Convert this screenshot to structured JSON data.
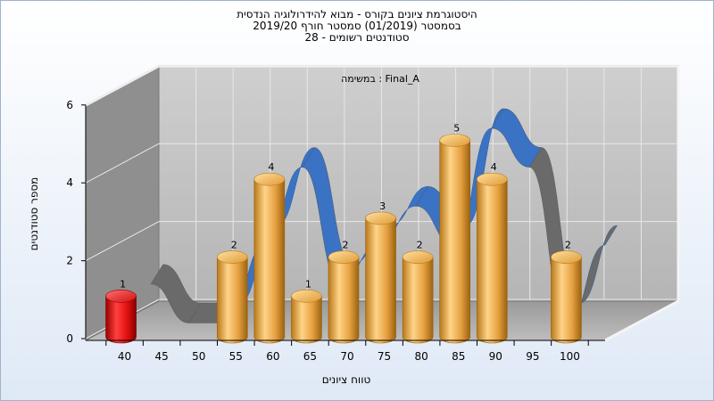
{
  "chart_data": {
    "type": "bar",
    "title": "היסטוגרמת ציונים בקורס - מבוא להידרולוגיה הנדסית",
    "subtitle": "בסמסטר  (01/2019)  סמסטר חורף 2019/20",
    "subtitle2": "סטודנטים רשומים - 28",
    "annotation": "במשימה : Final_A",
    "xlabel": "טווח ציונים",
    "ylabel": "מספר סטודנטים",
    "categories": [
      "40",
      "45",
      "50",
      "55",
      "60",
      "65",
      "70",
      "75",
      "80",
      "85",
      "90",
      "95",
      "100"
    ],
    "values": [
      1,
      0,
      0,
      2,
      4,
      1,
      2,
      3,
      2,
      5,
      4,
      0,
      2
    ],
    "ylim": [
      0,
      6
    ],
    "yticks": [
      "0",
      "2",
      "4",
      "6"
    ],
    "grid": true,
    "bar_colors": {
      "failing": "#e01010",
      "passing": "#f0a840"
    },
    "ribbon_colors": {
      "trend": "#3a72c4",
      "back": "#6a6a6a"
    }
  }
}
